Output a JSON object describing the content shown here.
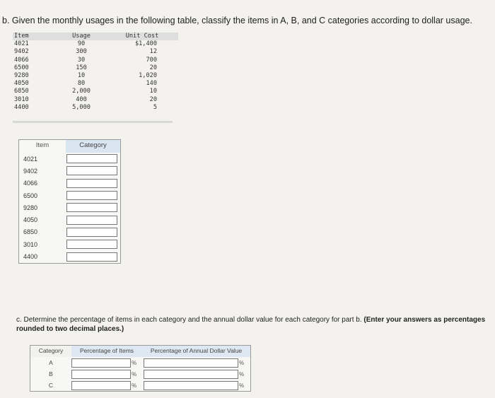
{
  "question_b": "b. Given the monthly usages in the following table, classify the items in A, B, and C categories according to dollar usage.",
  "data_table": {
    "headers": [
      "Item",
      "Usage",
      "Unit Cost"
    ],
    "rows": [
      [
        "4021",
        "90",
        "$1,400"
      ],
      [
        "9402",
        "300",
        "12"
      ],
      [
        "4066",
        "30",
        "700"
      ],
      [
        "6500",
        "150",
        "20"
      ],
      [
        "9280",
        "10",
        "1,020"
      ],
      [
        "4050",
        "80",
        "140"
      ],
      [
        "6850",
        "2,000",
        "10"
      ],
      [
        "3010",
        "400",
        "20"
      ],
      [
        "4400",
        "5,000",
        "5"
      ]
    ]
  },
  "classification_table": {
    "header_item": "Item",
    "header_category": "Category",
    "items": [
      "4021",
      "9402",
      "4066",
      "6500",
      "9280",
      "4050",
      "6850",
      "3010",
      "4400"
    ]
  },
  "question_c": {
    "text": "c. Determine the percentage of items in each category and the annual dollar value for each category for part b.",
    "bold": "(Enter your answers as percentages rounded to two decimal places.)"
  },
  "percentage_table": {
    "header_category": "Category",
    "header_items": "Percentage of Items",
    "header_value": "Percentage of Annual Dollar Value",
    "unit": "%",
    "categories": [
      "A",
      "B",
      "C"
    ]
  }
}
